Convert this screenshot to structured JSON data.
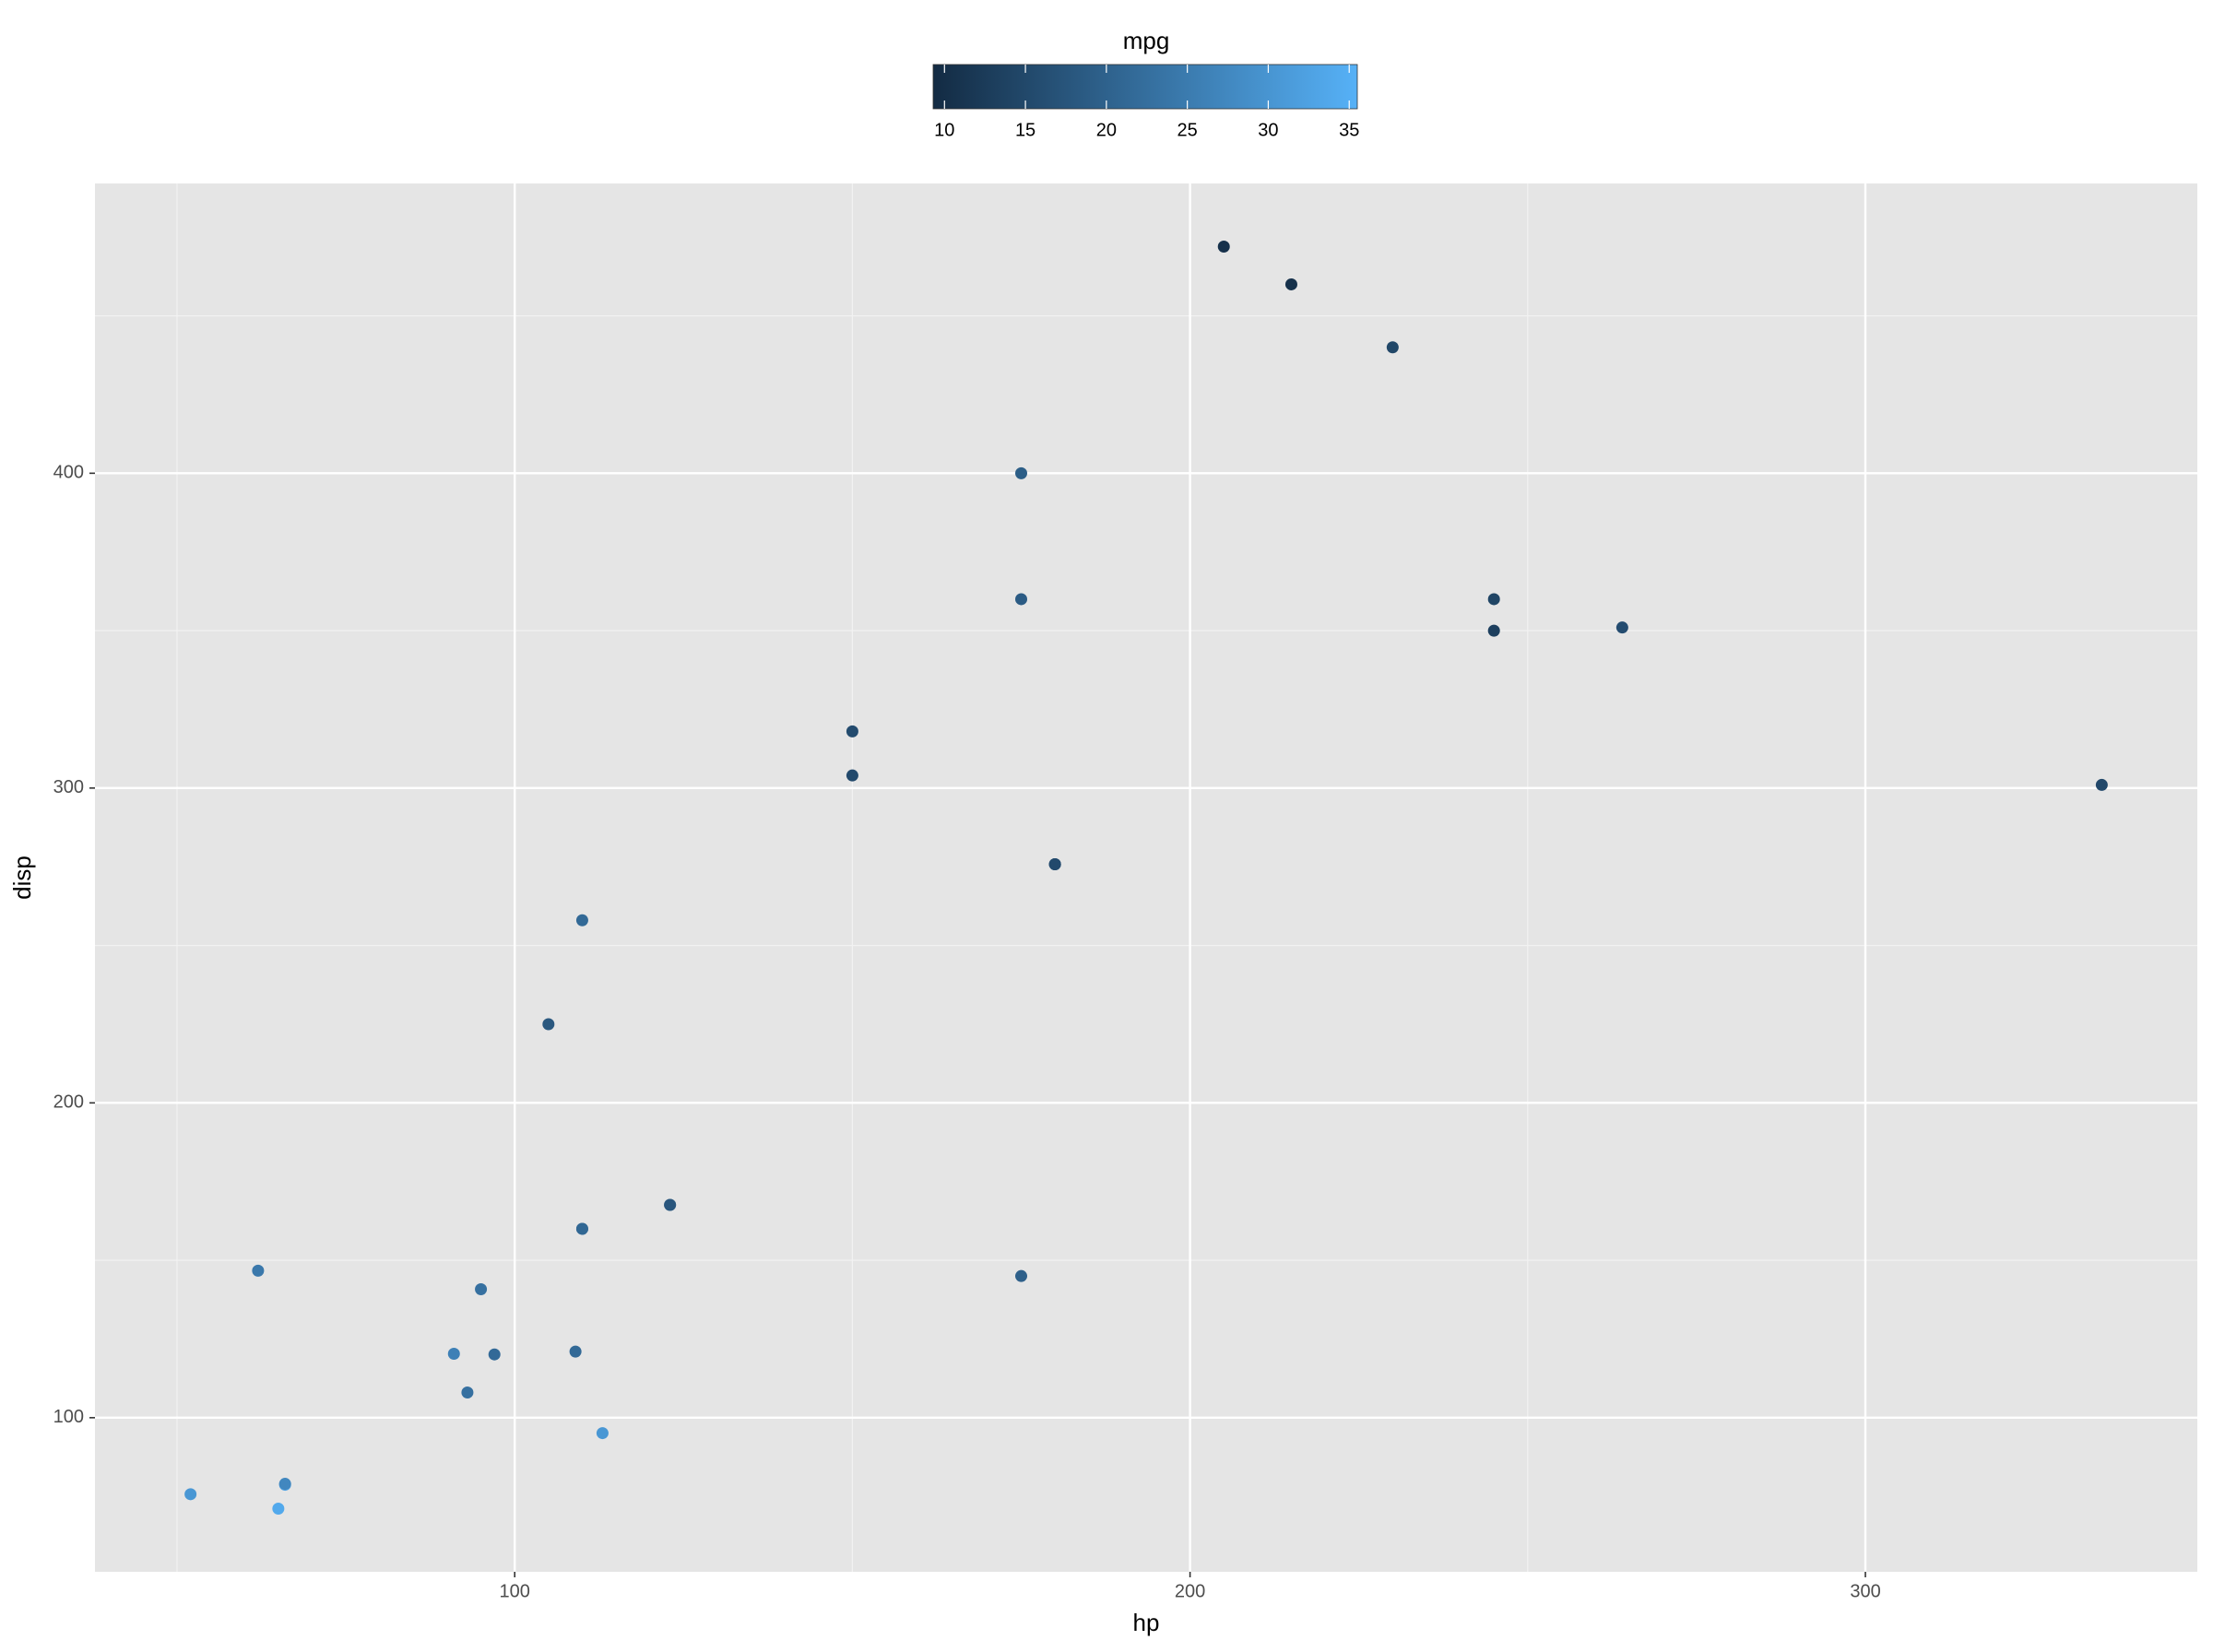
{
  "chart_data": {
    "type": "scatter",
    "x_label": "hp",
    "y_label": "disp",
    "x": [
      110,
      110,
      93,
      110,
      175,
      105,
      245,
      62,
      95,
      123,
      123,
      180,
      180,
      180,
      205,
      215,
      230,
      66,
      52,
      65,
      97,
      150,
      150,
      245,
      175,
      66,
      91,
      113,
      264,
      175,
      335,
      109
    ],
    "values": [
      160,
      160,
      108,
      258,
      360,
      225,
      360,
      146.7,
      140.8,
      167.6,
      167.6,
      275.8,
      275.8,
      275.8,
      472,
      460,
      440,
      78.7,
      75.7,
      71.1,
      120.1,
      318,
      304,
      350,
      400,
      79,
      120.3,
      95.1,
      351,
      145,
      301,
      121
    ],
    "color_values": [
      21,
      21,
      22.8,
      21.4,
      18.7,
      18.1,
      14.3,
      24.4,
      22.8,
      19.2,
      17.8,
      16.4,
      17.3,
      15.2,
      10.4,
      10.4,
      14.7,
      32.4,
      30.4,
      33.9,
      21.5,
      15.5,
      15.2,
      13.3,
      19.2,
      27.3,
      26,
      30.4,
      15.8,
      19.7,
      15,
      21.4
    ],
    "xlim": [
      37.85,
      349.15
    ],
    "xticks": [
      100,
      200,
      300
    ],
    "xminor": [
      50,
      150,
      250
    ],
    "ylim": [
      51.05,
      492.05
    ],
    "yticks": [
      100,
      200,
      300,
      400
    ],
    "yminor": [
      150,
      250,
      350,
      450
    ],
    "grid": true,
    "colorbar": {
      "title": "mpg",
      "lim": [
        9.3,
        35.5
      ],
      "ticks": [
        10,
        15,
        20,
        25,
        30,
        35
      ],
      "low": "#132B43",
      "high": "#56B1F7"
    }
  }
}
